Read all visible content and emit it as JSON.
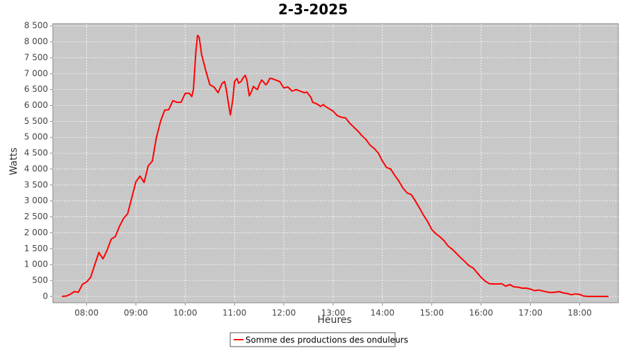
{
  "chart_data": {
    "type": "line",
    "title": "2-3-2025",
    "x_label": "Heures",
    "y_label": "Watts",
    "x": [
      "07:30",
      "07:35",
      "07:40",
      "07:45",
      "07:50",
      "07:55",
      "08:00",
      "08:05",
      "08:10",
      "08:15",
      "08:20",
      "08:25",
      "08:30",
      "08:35",
      "08:40",
      "08:45",
      "08:50",
      "08:55",
      "09:00",
      "09:05",
      "09:10",
      "09:15",
      "09:20",
      "09:25",
      "09:30",
      "09:35",
      "09:40",
      "09:45",
      "09:50",
      "09:55",
      "10:00",
      "10:05",
      "10:08",
      "10:10",
      "10:13",
      "10:15",
      "10:17",
      "10:20",
      "10:25",
      "10:30",
      "10:35",
      "10:40",
      "10:45",
      "10:48",
      "10:50",
      "10:53",
      "10:55",
      "10:58",
      "11:00",
      "11:03",
      "11:05",
      "11:08",
      "11:10",
      "11:13",
      "11:15",
      "11:18",
      "11:20",
      "11:23",
      "11:25",
      "11:28",
      "11:30",
      "11:33",
      "11:35",
      "11:38",
      "11:40",
      "11:43",
      "11:45",
      "11:50",
      "11:55",
      "12:00",
      "12:05",
      "12:10",
      "12:15",
      "12:20",
      "12:25",
      "12:28",
      "12:33",
      "12:35",
      "12:40",
      "12:45",
      "12:48",
      "12:50",
      "12:55",
      "13:00",
      "13:05",
      "13:10",
      "13:15",
      "13:20",
      "13:25",
      "13:30",
      "13:35",
      "13:40",
      "13:45",
      "13:50",
      "13:55",
      "14:00",
      "14:05",
      "14:10",
      "14:15",
      "14:20",
      "14:25",
      "14:30",
      "14:35",
      "14:40",
      "14:45",
      "14:50",
      "14:55",
      "15:00",
      "15:05",
      "15:10",
      "15:15",
      "15:20",
      "15:25",
      "15:30",
      "15:35",
      "15:40",
      "15:45",
      "15:50",
      "15:55",
      "16:00",
      "16:05",
      "16:10",
      "16:15",
      "16:20",
      "16:25",
      "16:30",
      "16:35",
      "16:40",
      "16:45",
      "16:50",
      "16:55",
      "17:00",
      "17:05",
      "17:10",
      "17:15",
      "17:20",
      "17:25",
      "17:30",
      "17:35",
      "17:40",
      "17:45",
      "17:50",
      "17:55",
      "18:00",
      "18:05",
      "18:10",
      "18:20",
      "18:30",
      "18:35"
    ],
    "series": [
      {
        "name": "Somme des productions des onduleurs",
        "color": "#ff0000",
        "values": [
          0,
          10,
          60,
          150,
          130,
          380,
          450,
          600,
          1000,
          1380,
          1180,
          1450,
          1800,
          1880,
          2200,
          2450,
          2600,
          3100,
          3600,
          3780,
          3580,
          4100,
          4250,
          5000,
          5500,
          5850,
          5870,
          6150,
          6100,
          6100,
          6380,
          6380,
          6280,
          6500,
          7700,
          8200,
          8150,
          7600,
          7100,
          6650,
          6580,
          6400,
          6700,
          6750,
          6500,
          6000,
          5700,
          6200,
          6750,
          6850,
          6700,
          6750,
          6850,
          6950,
          6800,
          6300,
          6400,
          6600,
          6550,
          6500,
          6650,
          6800,
          6750,
          6650,
          6700,
          6850,
          6850,
          6800,
          6750,
          6550,
          6580,
          6450,
          6500,
          6450,
          6400,
          6420,
          6250,
          6100,
          6050,
          5970,
          6030,
          5980,
          5900,
          5820,
          5680,
          5630,
          5610,
          5450,
          5320,
          5200,
          5050,
          4930,
          4750,
          4650,
          4500,
          4250,
          4050,
          4000,
          3800,
          3620,
          3400,
          3250,
          3200,
          3000,
          2780,
          2550,
          2350,
          2100,
          1970,
          1870,
          1750,
          1580,
          1480,
          1350,
          1220,
          1100,
          970,
          900,
          750,
          600,
          480,
          400,
          390,
          390,
          400,
          320,
          370,
          300,
          290,
          260,
          260,
          230,
          180,
          200,
          170,
          140,
          120,
          130,
          150,
          110,
          90,
          50,
          80,
          60,
          10,
          0,
          0,
          0,
          0
        ]
      }
    ],
    "xlim": [
      "07:19",
      "18:47"
    ],
    "xticks": [
      "08:00",
      "09:00",
      "10:00",
      "11:00",
      "12:00",
      "13:00",
      "14:00",
      "15:00",
      "16:00",
      "17:00",
      "18:00"
    ],
    "ylim": [
      -200,
      8570
    ],
    "yticks": [
      0,
      500,
      {
        "value": 1000,
        "label": "1 000"
      },
      {
        "value": 1500,
        "label": "1 500"
      },
      {
        "value": 2000,
        "label": "2 000"
      },
      {
        "value": 2500,
        "label": "2 500"
      },
      {
        "value": 3000,
        "label": "3 000"
      },
      {
        "value": 3500,
        "label": "3 500"
      },
      {
        "value": 4000,
        "label": "4 000"
      },
      {
        "value": 4500,
        "label": "4 500"
      },
      {
        "value": 5000,
        "label": "5 000"
      },
      {
        "value": 5500,
        "label": "5 500"
      },
      {
        "value": 6000,
        "label": "6 000"
      },
      {
        "value": 6500,
        "label": "6 500"
      },
      {
        "value": 7000,
        "label": "7 000"
      },
      {
        "value": 7500,
        "label": "7 500"
      },
      {
        "value": 8000,
        "label": "8 000"
      },
      {
        "value": 8500,
        "label": "8 500"
      }
    ],
    "grid": true
  }
}
